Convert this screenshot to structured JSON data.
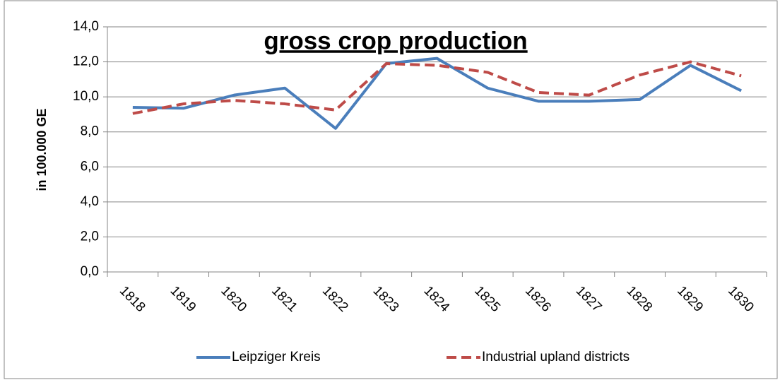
{
  "chart_data": {
    "type": "line",
    "title": "gross crop production",
    "y_label": "in 100.000 GE",
    "categories": [
      "1818",
      "1819",
      "1820",
      "1821",
      "1822",
      "1823",
      "1824",
      "1825",
      "1826",
      "1827",
      "1828",
      "1829",
      "1830"
    ],
    "series": [
      {
        "name": "Leipziger Kreis",
        "color": "#4a7ebb",
        "dash": "solid",
        "values": [
          9.4,
          9.35,
          10.1,
          10.5,
          8.2,
          11.9,
          12.2,
          10.5,
          9.75,
          9.75,
          9.85,
          11.8,
          10.35
        ]
      },
      {
        "name": "Industrial upland districts",
        "color": "#be4b48",
        "dash": "dashed",
        "values": [
          9.05,
          9.6,
          9.8,
          9.6,
          9.25,
          11.9,
          11.8,
          11.4,
          10.25,
          10.1,
          11.25,
          12.0,
          11.2
        ]
      }
    ],
    "ylim": [
      0,
      14
    ],
    "yticks": [
      {
        "value": 0,
        "label": "0,0"
      },
      {
        "value": 2,
        "label": "2,0"
      },
      {
        "value": 4,
        "label": "4,0"
      },
      {
        "value": 6,
        "label": "6,0"
      },
      {
        "value": 8,
        "label": "8,0"
      },
      {
        "value": 10,
        "label": "10,0"
      },
      {
        "value": 12,
        "label": "12,0"
      },
      {
        "value": 14,
        "label": "14,0"
      }
    ],
    "grid": true,
    "legend": "bottom"
  }
}
